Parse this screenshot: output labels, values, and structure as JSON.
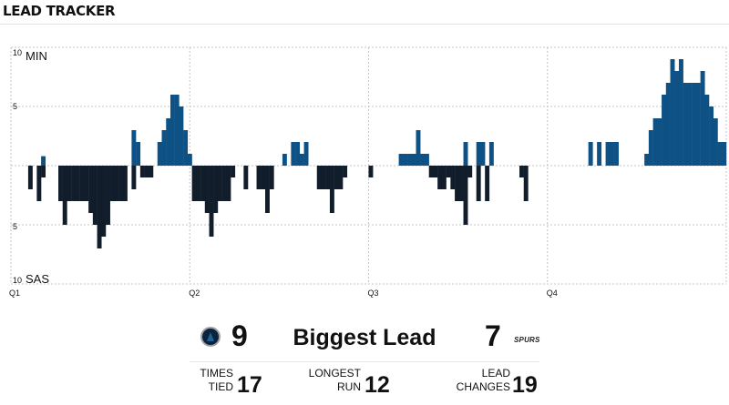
{
  "header": {
    "title": "LEAD TRACKER"
  },
  "colors": {
    "home": "#0e5185",
    "away": "#111d2b",
    "grid": "#c4c4c4"
  },
  "chart_data": {
    "type": "bar",
    "title": "",
    "xlabel": "",
    "ylabel": "",
    "ylim": [
      -10,
      10
    ],
    "y_tick_labels": [
      "10",
      "5",
      "5",
      "10"
    ],
    "top_team_label": "MIN",
    "bottom_team_label": "SAS",
    "quarter_labels": [
      "Q1",
      "Q2",
      "Q3",
      "Q4"
    ],
    "grid": true,
    "series": [
      {
        "name": "MIN",
        "values": [
          0,
          0,
          0,
          0,
          0,
          0,
          0,
          0.8,
          0,
          0,
          0,
          0,
          0,
          0,
          0,
          0,
          0,
          0,
          0,
          0,
          0,
          0,
          0,
          0,
          0,
          0,
          0,
          0,
          3.0,
          2.0,
          0,
          0,
          0,
          0,
          2.0,
          3.0,
          4.0,
          6.0,
          6.0,
          5.0,
          3.0,
          1.0,
          0,
          0,
          0,
          0,
          0,
          0,
          0,
          0,
          0,
          0,
          0,
          0,
          0,
          0,
          0,
          0,
          0,
          0,
          0,
          0,
          0,
          1.0,
          0,
          2.0,
          2.0,
          1.0,
          2.0,
          0,
          0,
          0,
          0,
          0,
          0,
          0,
          0,
          0,
          0,
          0,
          0,
          0,
          0,
          0,
          0,
          0,
          0,
          0,
          0,
          0,
          1.0,
          1.0,
          1.0,
          1.0,
          3.0,
          1.0,
          1.0,
          0,
          0,
          0,
          0,
          0,
          0,
          0,
          0,
          2.0,
          0,
          0,
          2.0,
          2.0,
          0,
          2.0,
          0,
          0,
          0,
          0,
          0,
          0,
          0,
          0,
          0,
          0,
          0,
          0,
          0,
          0,
          0,
          0,
          0,
          0,
          0,
          0,
          0,
          0,
          2.0,
          0,
          2.0,
          0,
          2.0,
          2.0,
          2.0,
          0,
          0,
          0,
          0,
          0,
          0,
          1.0,
          3.0,
          4.0,
          4.0,
          6.0,
          7.0,
          9.0,
          8.0,
          9.0,
          7.0,
          7.0,
          7.0,
          7.0,
          8.0,
          6.0,
          5.0,
          4.0,
          2.0,
          2.0
        ]
      },
      {
        "name": "SAS",
        "values": [
          0,
          0,
          0,
          0,
          -2.0,
          0,
          -3.0,
          -1.0,
          0,
          0,
          0,
          -3.0,
          -5.0,
          -3.0,
          -3.0,
          -3.0,
          -3.0,
          -3.0,
          -4.0,
          -5.0,
          -7.0,
          -6.0,
          -5.0,
          -3.0,
          -3.0,
          -3.0,
          -3.0,
          0,
          -2.0,
          0,
          -1.0,
          -1.0,
          -1.0,
          0,
          0,
          0,
          0,
          0,
          0,
          0,
          0,
          0,
          -3.0,
          -3.0,
          -3.0,
          -4.0,
          -6.0,
          -4.0,
          -3.0,
          -3.0,
          -3.0,
          -1.0,
          0,
          0,
          -2.0,
          0,
          0,
          -2.0,
          -2.0,
          -4.0,
          -2.0,
          0,
          0,
          0,
          0,
          0,
          0,
          0,
          0,
          0,
          0,
          -2.0,
          -2.0,
          -2.0,
          -4.0,
          -2.0,
          -2.0,
          -1.0,
          0,
          0,
          0,
          0,
          0,
          -1.0,
          0,
          0,
          0,
          0,
          0,
          0,
          0,
          0,
          0,
          0,
          0,
          0,
          0,
          -1.0,
          -1.0,
          -2.0,
          -2.0,
          -1.0,
          -2.0,
          -3.0,
          -3.0,
          -5.0,
          -1.0,
          0,
          -3.0,
          0,
          -3.0,
          0,
          0,
          0,
          0,
          0,
          0,
          0,
          -1.0,
          -3.0,
          0,
          0,
          0,
          0,
          0,
          0,
          0,
          0,
          0,
          0,
          0,
          0,
          0,
          0,
          0,
          0,
          0,
          0,
          0,
          0,
          0,
          0,
          0,
          0,
          0,
          0,
          0,
          0,
          0,
          0,
          0,
          0,
          0,
          0,
          0,
          0,
          0,
          0,
          0,
          0,
          0,
          0,
          0,
          0,
          0,
          0,
          0,
          0,
          0
        ]
      }
    ]
  },
  "summary": {
    "home_biggest_lead": "9",
    "label": "Biggest Lead",
    "away_biggest_lead": "7",
    "away_logo_text": "SPURS",
    "home_logo_icon": "timberwolves-logo-icon",
    "away_logo_icon": "spurs-logo-icon",
    "times_tied_label_1": "TIMES",
    "times_tied_label_2": "TIED",
    "times_tied": "17",
    "longest_run_label_1": "LONGEST",
    "longest_run_label_2": "RUN",
    "longest_run": "12",
    "lead_changes_label_1": "LEAD",
    "lead_changes_label_2": "CHANGES",
    "lead_changes": "19"
  }
}
